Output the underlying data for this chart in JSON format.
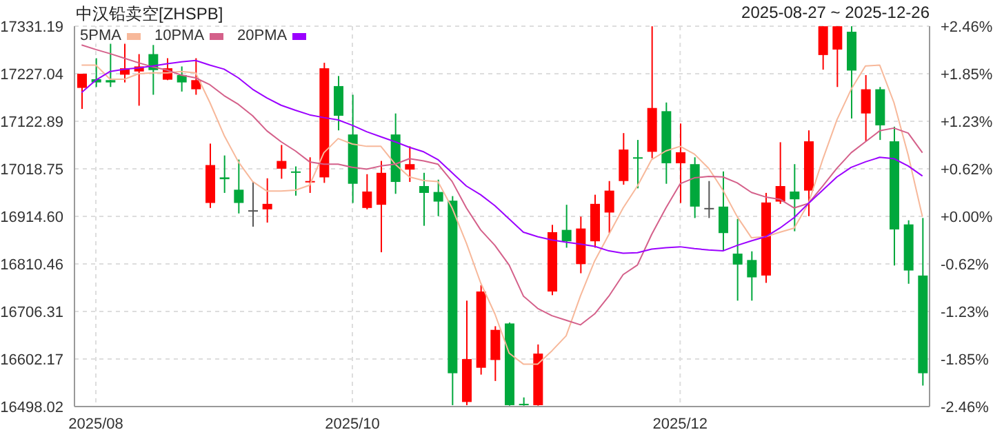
{
  "chart_data": {
    "type": "candlestick",
    "title": "中汉铅卖空[ZHSPB]",
    "subtitle": "2025-08-27 ~ 2025-12-26",
    "categories": [
      null,
      "2025/08",
      null,
      null,
      null,
      null,
      null,
      null,
      null,
      null,
      null,
      null,
      null,
      null,
      null,
      null,
      null,
      null,
      null,
      "2025/10",
      null,
      null,
      null,
      null,
      null,
      null,
      null,
      null,
      null,
      null,
      null,
      null,
      null,
      null,
      null,
      null,
      null,
      null,
      null,
      null,
      null,
      null,
      "2025/12",
      null,
      null,
      null,
      null,
      null,
      null,
      null,
      null,
      null,
      null,
      null,
      null,
      null,
      null,
      null,
      null,
      null
    ],
    "ohlc": [
      [
        17196,
        17227,
        17150,
        17227
      ],
      [
        17215,
        17261,
        17198,
        17208
      ],
      [
        17213,
        17294,
        17198,
        17208
      ],
      [
        17225,
        17294,
        17208,
        17239
      ],
      [
        17232,
        17270,
        17157,
        17243
      ],
      [
        17270,
        17290,
        17181,
        17235
      ],
      [
        17214,
        17261,
        17213,
        17239
      ],
      [
        17224,
        17243,
        17188,
        17208
      ],
      [
        17193,
        17261,
        17181,
        17213
      ],
      [
        16944,
        17074,
        16933,
        17027
      ],
      [
        17000,
        17048,
        16966,
        16996
      ],
      [
        16973,
        17039,
        16921,
        16944
      ],
      [
        16928,
        16990,
        16892,
        16928
      ],
      [
        16930,
        16998,
        16901,
        16942
      ],
      [
        17019,
        17071,
        16997,
        17036
      ],
      [
        17013,
        17024,
        16960,
        17011
      ],
      [
        16990,
        17044,
        16966,
        16992
      ],
      [
        17000,
        17251,
        16988,
        17239
      ],
      [
        17200,
        17222,
        17103,
        17135
      ],
      [
        17094,
        17181,
        16944,
        16986
      ],
      [
        16933,
        17007,
        16930,
        16969
      ],
      [
        16940,
        17036,
        16836,
        17010
      ],
      [
        17094,
        17140,
        16964,
        16990
      ],
      [
        17017,
        17068,
        16990,
        17029
      ],
      [
        16981,
        17010,
        16894,
        16966
      ],
      [
        16968,
        16995,
        16915,
        16947
      ],
      [
        16949,
        16959,
        16501,
        16571
      ],
      [
        16508,
        16730,
        16501,
        16602
      ],
      [
        16583,
        16764,
        16568,
        16750
      ],
      [
        16600,
        16674,
        16554,
        16666
      ],
      [
        16680,
        16682,
        16500,
        16501
      ],
      [
        16504,
        16518,
        16500,
        16501
      ],
      [
        16501,
        16634,
        16500,
        16614
      ],
      [
        16750,
        16896,
        16742,
        16880
      ],
      [
        16885,
        16940,
        16846,
        16860
      ],
      [
        16810,
        16914,
        16790,
        16888
      ],
      [
        16860,
        16962,
        16846,
        16942
      ],
      [
        16923,
        16992,
        16878,
        16971
      ],
      [
        16992,
        17097,
        16984,
        17061
      ],
      [
        17044,
        17082,
        16976,
        17042
      ],
      [
        17056,
        17331,
        17042,
        17152
      ],
      [
        17145,
        17164,
        16986,
        17031
      ],
      [
        17031,
        17118,
        16944,
        17055
      ],
      [
        17029,
        17044,
        16911,
        16936
      ],
      [
        16933,
        16992,
        16911,
        16933
      ],
      [
        16936,
        17013,
        16839,
        16878
      ],
      [
        16833,
        16909,
        16730,
        16809
      ],
      [
        16819,
        16838,
        16730,
        16781
      ],
      [
        16785,
        16966,
        16769,
        16945
      ],
      [
        16947,
        17077,
        16942,
        16981
      ],
      [
        16969,
        17029,
        16882,
        16952
      ],
      [
        16971,
        17103,
        16915,
        17079
      ],
      [
        17268,
        17331,
        17236,
        17331
      ],
      [
        17280,
        17331,
        17198,
        17331
      ],
      [
        17319,
        17331,
        17129,
        17234
      ],
      [
        17140,
        17224,
        17079,
        17193
      ],
      [
        17193,
        17198,
        17082,
        17114
      ],
      [
        17079,
        17111,
        16807,
        16886
      ],
      [
        16897,
        16906,
        16767,
        16796
      ],
      [
        16785,
        16911,
        16544,
        16571
      ]
    ],
    "colors": [
      "#ff0000",
      "#00a83c",
      "#00a83c",
      "#ff0000",
      "#ff0000",
      "#00a83c",
      "#ff0000",
      "#00a83c",
      "#ff0000",
      "#ff0000",
      "#00a83c",
      "#00a83c",
      "#555555",
      "#ff0000",
      "#ff0000",
      "#00a83c",
      "#ff0000",
      "#ff0000",
      "#00a83c",
      "#00a83c",
      "#ff0000",
      "#ff0000",
      "#00a83c",
      "#ff0000",
      "#00a83c",
      "#00a83c",
      "#00a83c",
      "#ff0000",
      "#ff0000",
      "#ff0000",
      "#00a83c",
      "#00a83c",
      "#ff0000",
      "#ff0000",
      "#00a83c",
      "#ff0000",
      "#ff0000",
      "#ff0000",
      "#ff0000",
      "#00a83c",
      "#ff0000",
      "#00a83c",
      "#ff0000",
      "#00a83c",
      "#555555",
      "#00a83c",
      "#00a83c",
      "#00a83c",
      "#ff0000",
      "#ff0000",
      "#00a83c",
      "#ff0000",
      "#ff0000",
      "#ff0000",
      "#00a83c",
      "#ff0000",
      "#00a83c",
      "#00a83c",
      "#00a83c",
      "#00a83c"
    ],
    "series": [
      {
        "type": "line",
        "name": "5PMA",
        "color": "#f7b89a",
        "values": [
          17246,
          17246,
          17215,
          17215,
          17227,
          17229,
          17229,
          17232,
          17229,
          17164,
          17092,
          17034,
          16991,
          16970,
          16970,
          16972,
          16983,
          17054,
          17085,
          17073,
          17068,
          17068,
          17029,
          17001,
          16993,
          16991,
          16933,
          16856,
          16769,
          16701,
          16615,
          16591,
          16591,
          16620,
          16653,
          16740,
          16817,
          16875,
          16933,
          16981,
          17039,
          17058,
          17068,
          17051,
          17020,
          16972,
          16914,
          16868,
          16870,
          16880,
          16889,
          16943,
          17039,
          17126,
          17193,
          17244,
          17246,
          17164,
          17049,
          16914
        ]
      },
      {
        "type": "line",
        "name": "10PMA",
        "color": "#d4608a",
        "values": [
          17290,
          17280,
          17271,
          17261,
          17251,
          17242,
          17235,
          17224,
          17218,
          17203,
          17179,
          17160,
          17135,
          17102,
          17078,
          17058,
          17034,
          17029,
          17029,
          17022,
          17018,
          17025,
          17029,
          17041,
          17036,
          17029,
          16991,
          16933,
          16885,
          16851,
          16808,
          16740,
          16713,
          16697,
          16687,
          16677,
          16701,
          16740,
          16787,
          16808,
          16875,
          16933,
          16986,
          16999,
          17002,
          17001,
          16988,
          16967,
          16957,
          16952,
          16933,
          16943,
          16981,
          17020,
          17054,
          17078,
          17102,
          17108,
          17097,
          17054
        ]
      },
      {
        "type": "line",
        "name": "20PMA",
        "color": "#9b00ff",
        "values": [
          17186,
          17213,
          17232,
          17237,
          17240,
          17244,
          17249,
          17253,
          17256,
          17246,
          17237,
          17218,
          17193,
          17174,
          17158,
          17147,
          17137,
          17131,
          17126,
          17114,
          17100,
          17089,
          17078,
          17066,
          17056,
          17039,
          17010,
          16981,
          16962,
          16938,
          16909,
          16880,
          16870,
          16863,
          16858,
          16854,
          16849,
          16839,
          16834,
          16835,
          16843,
          16846,
          16848,
          16844,
          16841,
          16839,
          16851,
          16861,
          16870,
          16889,
          16912,
          16943,
          16972,
          17001,
          17022,
          17034,
          17044,
          17041,
          17025,
          17003
        ]
      }
    ],
    "ylim": [
      16498.02,
      17331.19
    ],
    "yticks": [
      16498.02,
      16602.17,
      16706.31,
      16810.46,
      {
        "value": 16914.6,
        "label": "16914.60"
      },
      17018.75,
      17122.89,
      17227.04,
      17331.19
    ],
    "y2lim": [
      -2.46,
      2.46
    ],
    "y2ticks": [
      {
        "value": -2.46,
        "label": "-2.46%"
      },
      {
        "value": -1.845,
        "label": "-1.85%"
      },
      {
        "value": -1.23,
        "label": "-1.23%"
      },
      {
        "value": -0.615,
        "label": "-0.62%"
      },
      {
        "value": 0,
        "label": "+0.00%"
      },
      {
        "value": 0.615,
        "label": "+0.62%"
      },
      {
        "value": 1.23,
        "label": "+1.23%"
      },
      {
        "value": 1.845,
        "label": "+1.85%"
      },
      {
        "value": 2.46,
        "label": "+2.46%"
      }
    ],
    "grid": true,
    "legend": "top left"
  }
}
